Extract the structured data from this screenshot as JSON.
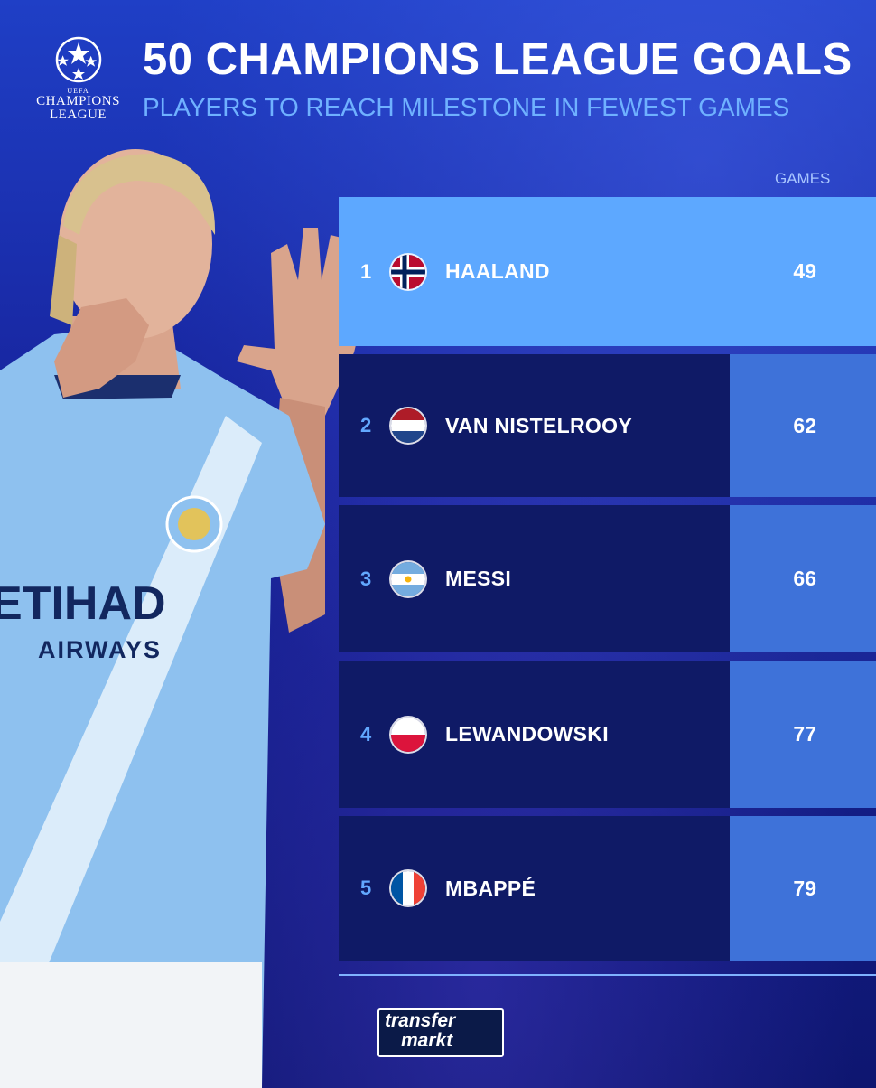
{
  "header": {
    "title": "50 CHAMPIONS LEAGUE GOALS",
    "subtitle": "PLAYERS TO REACH MILESTONE IN FEWEST GAMES"
  },
  "logo": {
    "top_text": "UEFA",
    "line1": "CHAMPIONS",
    "line2": "LEAGUE"
  },
  "table": {
    "games_header": "GAMES",
    "rows": [
      {
        "rank": "1",
        "name": "HAALAND",
        "games": "49",
        "flag": "norway-flag"
      },
      {
        "rank": "2",
        "name": "VAN NISTELROOY",
        "games": "62",
        "flag": "netherlands-flag"
      },
      {
        "rank": "3",
        "name": "MESSI",
        "games": "66",
        "flag": "argentina-flag"
      },
      {
        "rank": "4",
        "name": "LEWANDOWSKI",
        "games": "77",
        "flag": "poland-flag"
      },
      {
        "rank": "5",
        "name": "MBAPPÉ",
        "games": "79",
        "flag": "france-flag"
      }
    ]
  },
  "player_shirt": {
    "sponsor_line1": "ETIHAD",
    "sponsor_line2": "AIRWAYS"
  },
  "footer": {
    "brand_line1": "transfer",
    "brand_line2": "markt"
  },
  "colors": {
    "background": "#17239c",
    "highlight_row": "#5da8ff",
    "row": "#0f1a66",
    "games_cell": "#3e72d9",
    "subtitle": "#6fb1ff"
  }
}
